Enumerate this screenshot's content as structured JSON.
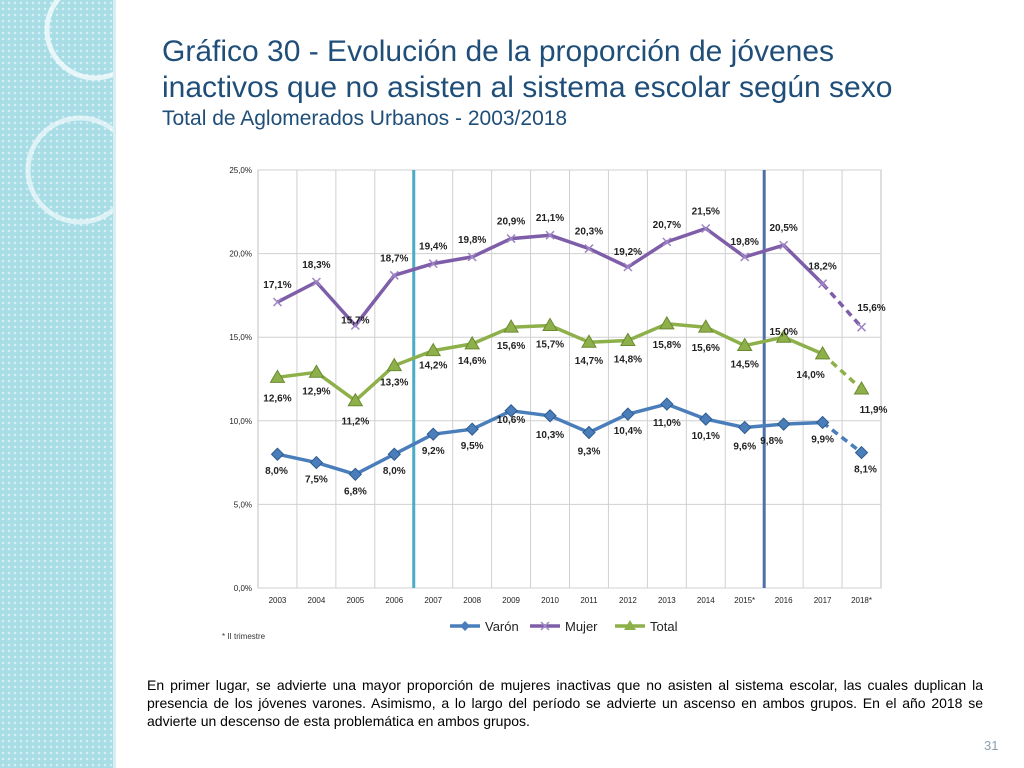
{
  "slide": {
    "title_line1": "Gráfico 30 - Evolución de la proporción de jóvenes",
    "title_line2": "inactivos que no asisten al sistema escolar según sexo",
    "subtitle": "Total de Aglomerados Urbanos - 2003/2018",
    "footnote": "* II trimestre",
    "caption": "En primer lugar, se advierte una mayor proporción de mujeres inactivas que no asisten al sistema escolar, las cuales duplican la presencia de los jóvenes varones.  Asimismo, a lo largo del período se advierte un ascenso en ambos grupos. En el año 2018 se advierte un descenso de esta problemática en ambos grupos.",
    "page_number": "31"
  },
  "chart_data": {
    "type": "line",
    "categories": [
      "2003",
      "2004",
      "2005",
      "2006",
      "2007",
      "2008",
      "2009",
      "2010",
      "2011",
      "2012",
      "2013",
      "2014",
      "2015*",
      "2016",
      "2017",
      "2018*"
    ],
    "ylim": [
      0,
      25
    ],
    "yticks": [
      "0,0%",
      "5,0%",
      "10,0%",
      "15,0%",
      "20,0%",
      "25,0%"
    ],
    "grid": true,
    "vertical_markers_after_category_index": [
      3,
      12
    ],
    "legend_position": "bottom",
    "dashed_last_segment": true,
    "series": [
      {
        "name": "Varón",
        "color": "#4a7ebb",
        "marker": "diamond",
        "values": [
          8.0,
          7.5,
          6.8,
          8.0,
          9.2,
          9.5,
          10.6,
          10.3,
          9.3,
          10.4,
          11.0,
          10.1,
          9.6,
          9.8,
          9.9,
          8.1
        ],
        "labels": [
          "8,0%",
          "7,5%",
          "6,8%",
          "8,0%",
          "9,2%",
          "9,5%",
          "10,6%",
          "10,3%",
          "9,3%",
          "10,4%",
          "11,0%",
          "10,1%",
          "9,6%",
          "9,8%",
          "9,9%",
          "8,1%"
        ]
      },
      {
        "name": "Mujer",
        "color": "#7e5ea8",
        "marker": "x",
        "values": [
          17.1,
          18.3,
          15.7,
          18.7,
          19.4,
          19.8,
          20.9,
          21.1,
          20.3,
          19.2,
          20.7,
          21.5,
          19.8,
          20.5,
          18.2,
          15.6
        ],
        "labels": [
          "17,1%",
          "18,3%",
          "15,7%",
          "18,7%",
          "19,4%",
          "19,8%",
          "20,9%",
          "21,1%",
          "20,3%",
          "19,2%",
          "20,7%",
          "21,5%",
          "19,8%",
          "20,5%",
          "18,2%",
          "15,6%"
        ]
      },
      {
        "name": "Total",
        "color": "#8db04a",
        "marker": "triangle",
        "values": [
          12.6,
          12.9,
          11.2,
          13.3,
          14.2,
          14.6,
          15.6,
          15.7,
          14.7,
          14.8,
          15.8,
          15.6,
          14.5,
          15.0,
          14.0,
          11.9
        ],
        "labels": [
          "12,6%",
          "12,9%",
          "11,2%",
          "13,3%",
          "14,2%",
          "14,6%",
          "15,6%",
          "15,7%",
          "14,7%",
          "14,8%",
          "15,8%",
          "15,6%",
          "14,5%",
          "15,0%",
          "14,0%",
          "11,9%"
        ]
      }
    ]
  }
}
